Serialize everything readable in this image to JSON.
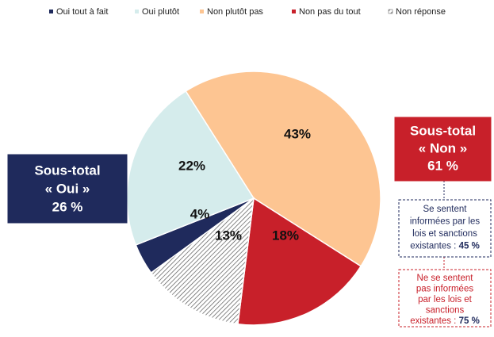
{
  "chart_data": {
    "type": "pie",
    "categories": [
      "Oui tout à fait",
      "Oui plutôt",
      "Non plutôt pas",
      "Non pas du tout",
      "Non réponse"
    ],
    "values": [
      4,
      22,
      43,
      18,
      13
    ],
    "value_labels": [
      "4%",
      "22%",
      "43%",
      "18%",
      "13%"
    ],
    "colors": [
      "#1f2a5c",
      "#d5ecec",
      "#fdc592",
      "#c8202a",
      "hatch"
    ],
    "legend": "top",
    "annotations": [
      {
        "lines": [
          "Sous-total",
          "« Oui »",
          "26 %"
        ],
        "color": "#1f2a5c"
      },
      {
        "lines": [
          "Sous-total",
          "« Non »",
          "61 %"
        ],
        "color": "#c8202a"
      },
      {
        "lines": [
          "Se sentent",
          "informées par les",
          "lois et sanctions"
        ],
        "last": "existantes : ",
        "highlight": "45 %",
        "color": "#1f2a5c"
      },
      {
        "lines": [
          "Ne se sentent",
          "pas informées",
          "par les lois et",
          "sanctions"
        ],
        "last": "existantes : ",
        "highlight": "75 %",
        "color": "#c8202a"
      }
    ]
  }
}
